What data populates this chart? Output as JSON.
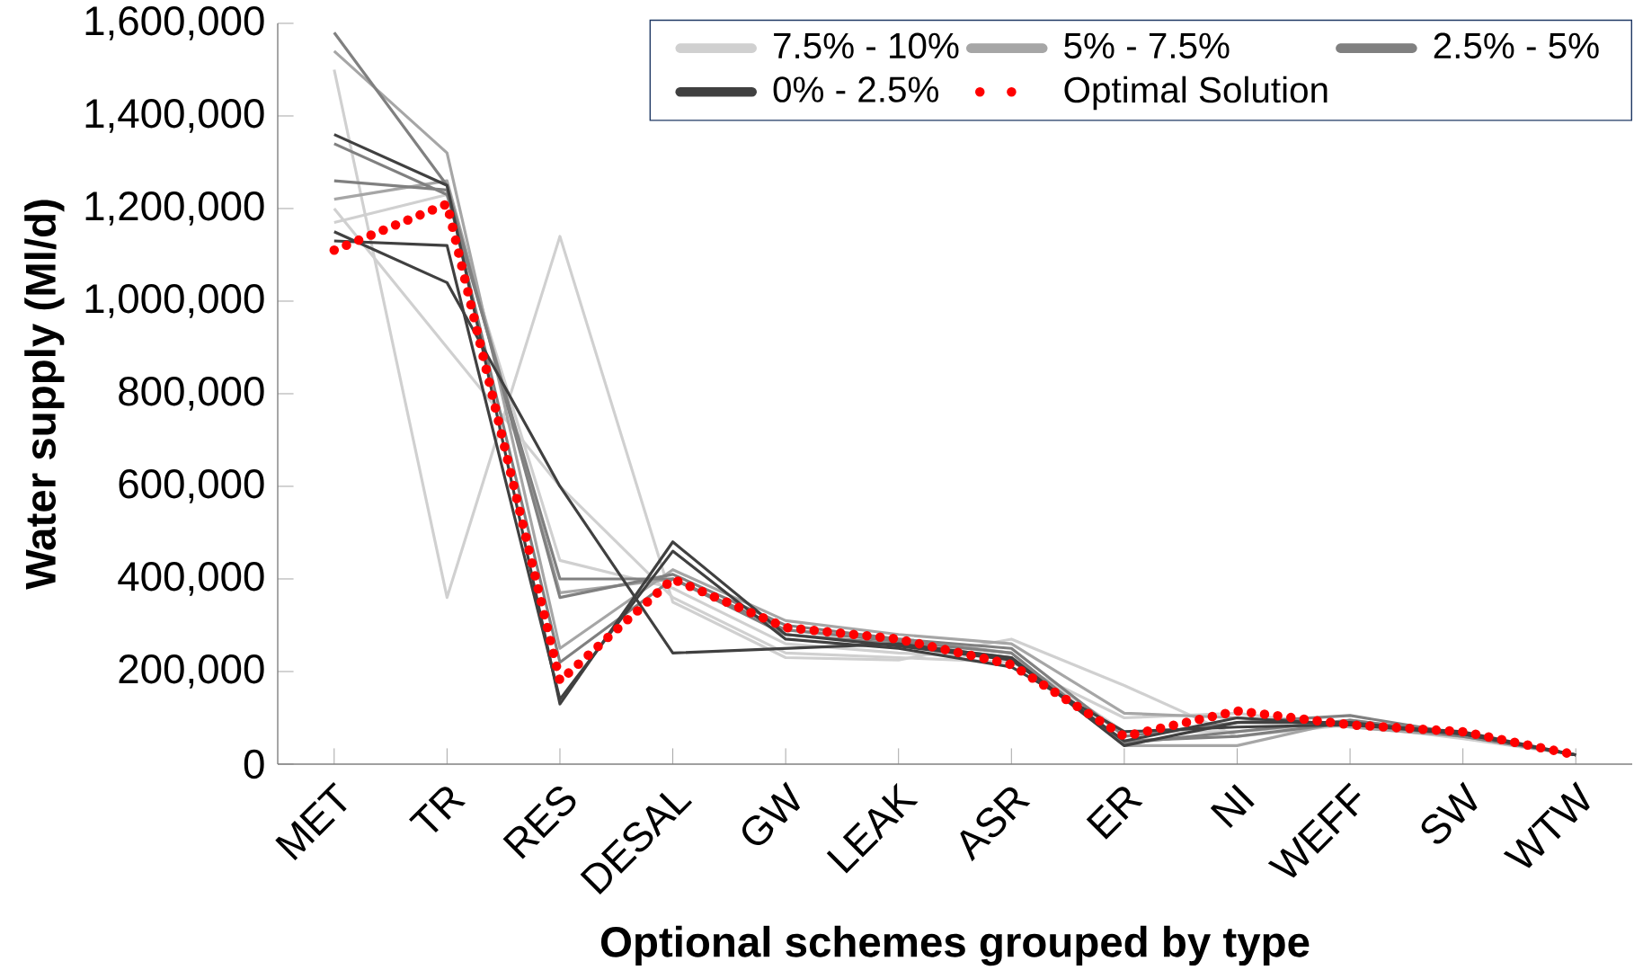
{
  "chart_data": {
    "type": "line",
    "xlabel": "Optional schemes grouped by type",
    "ylabel": "Water supply (Ml/d)",
    "categories": [
      "MET",
      "TR",
      "RES",
      "DESAL",
      "GW",
      "LEAK",
      "ASR",
      "ER",
      "NI",
      "WEFF",
      "SW",
      "WTW"
    ],
    "ylim": [
      0,
      1600000
    ],
    "yticks": [
      {
        "value": 0,
        "label": "0"
      },
      {
        "value": 200000,
        "label": "200,000"
      },
      {
        "value": 400000,
        "label": "400,000"
      },
      {
        "value": 600000,
        "label": "600,000"
      },
      {
        "value": 800000,
        "label": "800,000"
      },
      {
        "value": 1000000,
        "label": "1,000,000"
      },
      {
        "value": 1200000,
        "label": "1,200,000"
      },
      {
        "value": 1400000,
        "label": "1,400,000"
      },
      {
        "value": 1600000,
        "label": "1,600,000"
      }
    ],
    "legend": "top right",
    "grid": false,
    "series": [
      {
        "name": "7.5% - 10%",
        "color": "#d0d0d0",
        "values": [
          1500000,
          360000,
          1140000,
          350000,
          230000,
          225000,
          270000,
          170000,
          60000,
          85000,
          55000,
          20000
        ]
      },
      {
        "color": "#d0d0d0",
        "values": [
          1200000,
          900000,
          600000,
          360000,
          240000,
          230000,
          220000,
          100000,
          110000,
          80000,
          60000,
          20000
        ]
      },
      {
        "color": "#d0d0d0",
        "values": [
          1170000,
          1230000,
          440000,
          380000,
          260000,
          240000,
          230000,
          70000,
          70000,
          90000,
          60000,
          20000
        ]
      },
      {
        "name": "5% - 7.5%",
        "color": "#a6a6a6",
        "values": [
          1540000,
          1320000,
          250000,
          420000,
          310000,
          280000,
          260000,
          110000,
          100000,
          80000,
          60000,
          20000
        ]
      },
      {
        "color": "#a6a6a6",
        "values": [
          1220000,
          1260000,
          370000,
          400000,
          290000,
          270000,
          240000,
          40000,
          40000,
          95000,
          65000,
          20000
        ]
      },
      {
        "name": "2.5% - 5%",
        "color": "#808080",
        "values": [
          1580000,
          1250000,
          360000,
          410000,
          300000,
          270000,
          250000,
          60000,
          90000,
          105000,
          65000,
          20000
        ]
      },
      {
        "color": "#808080",
        "values": [
          1260000,
          1240000,
          220000,
          400000,
          280000,
          260000,
          230000,
          50000,
          60000,
          90000,
          60000,
          20000
        ]
      },
      {
        "color": "#808080",
        "values": [
          1340000,
          1230000,
          400000,
          400000,
          290000,
          265000,
          240000,
          45000,
          70000,
          95000,
          65000,
          20000
        ]
      },
      {
        "name": "0% - 2.5%",
        "color": "#404040",
        "values": [
          1360000,
          1250000,
          130000,
          480000,
          280000,
          255000,
          225000,
          50000,
          100000,
          85000,
          65000,
          20000
        ]
      },
      {
        "color": "#404040",
        "values": [
          1150000,
          1040000,
          600000,
          240000,
          250000,
          260000,
          230000,
          40000,
          90000,
          90000,
          65000,
          20000
        ]
      },
      {
        "color": "#404040",
        "values": [
          1130000,
          1120000,
          140000,
          460000,
          270000,
          250000,
          210000,
          70000,
          80000,
          85000,
          70000,
          20000
        ]
      },
      {
        "name": "Optimal Solution",
        "color": "#ff0000",
        "line_style": "dotted",
        "values": [
          1110000,
          1210000,
          180000,
          400000,
          295000,
          270000,
          215000,
          60000,
          115000,
          85000,
          70000,
          20000
        ]
      }
    ]
  }
}
